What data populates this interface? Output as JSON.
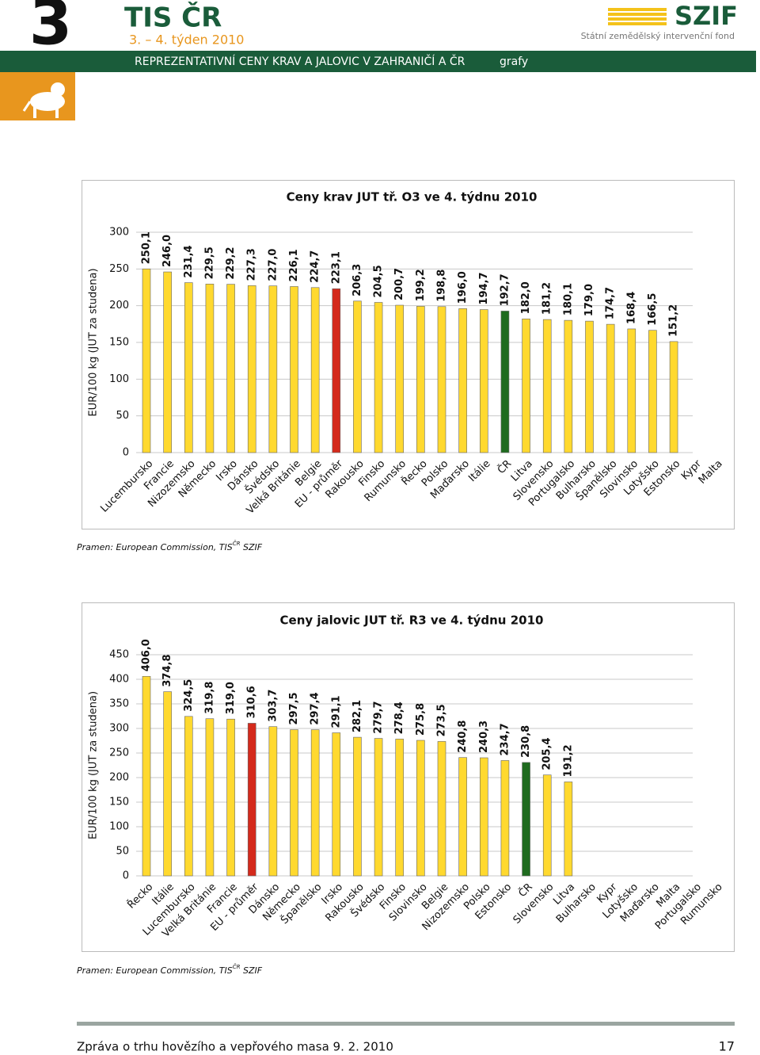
{
  "header": {
    "number": "3",
    "brand": "TIS ČR",
    "week": "3. – 4. týden 2010",
    "logo": "SZIF",
    "logo_subtitle": "Státní zemědělský intervenční fond",
    "section": "REPREZENTATIVNÍ CENY KRAV A JALOVIC  V ZAHRANIČÍ  A  ČR",
    "section_tag": "grafy"
  },
  "chart_data": [
    {
      "type": "bar",
      "title": "Ceny krav JUT tř. O3  ve 4. týdnu 2010",
      "y_label": "EUR/100 kg (JUT za studena)",
      "categories": [
        "Lucembursko",
        "Francie",
        "Nizozemsko",
        "Německo",
        "Irsko",
        "Dánsko",
        "Švédsko",
        "Velká Británie",
        "Belgie",
        "EU - průměr",
        "Rakousko",
        "Finsko",
        "Rumunsko",
        "Řecko",
        "Polsko",
        "Maďarsko",
        "Itálie",
        "ČR",
        "Litva",
        "Slovensko",
        "Portugalsko",
        "Bulharsko",
        "Španělsko",
        "Slovinsko",
        "Lotyšsko",
        "Estonsko",
        "Kypr",
        "Malta"
      ],
      "values": [
        250.1,
        246.0,
        231.4,
        229.5,
        229.2,
        227.3,
        227.0,
        226.1,
        224.7,
        223.1,
        206.3,
        204.5,
        200.7,
        199.2,
        198.8,
        196.0,
        194.7,
        192.7,
        182.0,
        181.2,
        180.1,
        179.0,
        174.7,
        168.4,
        166.5,
        151.2,
        null,
        null
      ],
      "value_labels": [
        "250,1",
        "246,0",
        "231,4",
        "229,5",
        "229,2",
        "227,3",
        "227,0",
        "226,1",
        "224,7",
        "223,1",
        "206,3",
        "204,5",
        "200,7",
        "199,2",
        "198,8",
        "196,0",
        "194,7",
        "192,7",
        "182,0",
        "181,2",
        "180,1",
        "179,0",
        "174,7",
        "168,4",
        "166,5",
        "151,2",
        null,
        null
      ],
      "color": "#ffd92f",
      "highlights": {
        "EU - průměr": "#d42a1c",
        "ČR": "#1f6b1f"
      },
      "ylim": [
        0,
        300
      ],
      "yticks": [
        0,
        50,
        100,
        150,
        200,
        250,
        300
      ],
      "grid": true,
      "source": {
        "text": "Pramen: European Commission, TIS",
        "sup": "ČR",
        "tail": " SZIF"
      }
    },
    {
      "type": "bar",
      "title": "Ceny jalovic JUT tř. R3  ve 4. týdnu 2010",
      "y_label": "EUR/100 kg (JUT za studena)",
      "categories": [
        "Řecko",
        "Itálie",
        "Lucembursko",
        "Velká Británie",
        "Francie",
        "EU - průměr",
        "Dánsko",
        "Německo",
        "Španělsko",
        "Irsko",
        "Rakousko",
        "Švédsko",
        "Finsko",
        "Slovinsko",
        "Belgie",
        "Nizozemsko",
        "Polsko",
        "Estonsko",
        "ČR",
        "Slovensko",
        "Litva",
        "Bulharsko",
        "Kypr",
        "Lotyšsko",
        "Maďarsko",
        "Malta",
        "Portugalsko",
        "Rumunsko"
      ],
      "values": [
        406.0,
        374.8,
        324.5,
        319.8,
        319.0,
        310.6,
        303.7,
        297.5,
        297.4,
        291.1,
        282.1,
        279.7,
        278.4,
        275.8,
        273.5,
        240.8,
        240.3,
        234.7,
        230.8,
        205.4,
        191.2,
        null,
        null,
        null,
        null,
        null,
        null,
        null
      ],
      "value_labels": [
        "406,0",
        "374,8",
        "324,5",
        "319,8",
        "319,0",
        "310,6",
        "303,7",
        "297,5",
        "297,4",
        "291,1",
        "282,1",
        "279,7",
        "278,4",
        "275,8",
        "273,5",
        "240,8",
        "240,3",
        "234,7",
        "230,8",
        "205,4",
        "191,2",
        null,
        null,
        null,
        null,
        null,
        null,
        null
      ],
      "color": "#ffd92f",
      "highlights": {
        "EU - průměr": "#d42a1c",
        "ČR": "#1f6b1f"
      },
      "ylim": [
        0,
        450
      ],
      "yticks": [
        0,
        50,
        100,
        150,
        200,
        250,
        300,
        350,
        400,
        450
      ],
      "grid": true,
      "source": {
        "text": "Pramen: European Commission, TIS",
        "sup": "ČR",
        "tail": " SZIF"
      }
    }
  ],
  "footer": {
    "text": "Zpráva o trhu hovězího a vepřového masa  9. 2. 2010",
    "page": "17"
  }
}
